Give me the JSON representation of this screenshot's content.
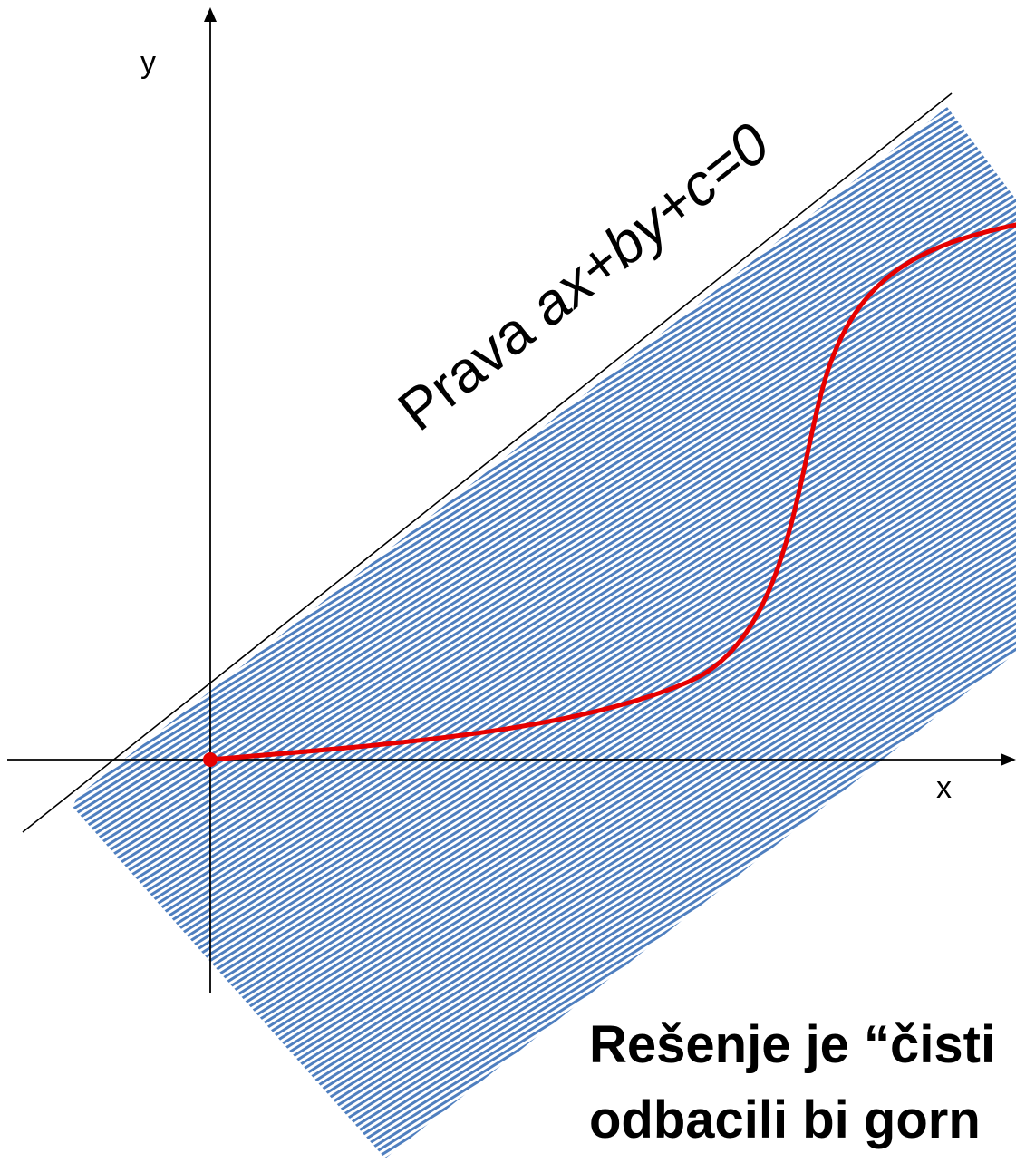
{
  "axes": {
    "x_label": "x",
    "y_label": "y"
  },
  "line_label": {
    "prefix": "Prava ",
    "equation": "ax+by+c=0"
  },
  "caption": {
    "line1": "Rešenje je “čisti",
    "line2": "odbacili bi gorn"
  },
  "colors": {
    "hatch": "#4f7fbf",
    "curve": "#e60000",
    "axes": "#000000",
    "boundary_line": "#000000"
  }
}
